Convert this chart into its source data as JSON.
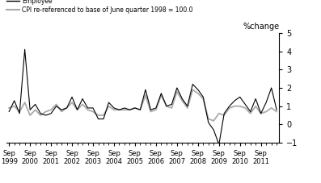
{
  "ylabel": "%change",
  "ylim": [
    -1,
    5
  ],
  "yticks": [
    -1,
    0,
    1,
    2,
    3,
    4,
    5
  ],
  "legend_employee": "Employee",
  "legend_cpi": "CPI re-referenced to base of June quarter 1998 = 100.0",
  "x_labels_top": [
    "Sep",
    "Sep",
    "Sep",
    "Sep",
    "Sep",
    "Sep",
    "Sep",
    "Sep",
    "Sep",
    "Sep",
    "Sep",
    "Sep",
    "Sep"
  ],
  "x_labels_bot": [
    "1999",
    "2000",
    "2001",
    "2002",
    "2003",
    "2004",
    "2005",
    "2006",
    "2007",
    "2008",
    "2009",
    "2010",
    "2011"
  ],
  "employee": [
    0.7,
    1.3,
    0.6,
    4.1,
    0.8,
    1.1,
    0.6,
    0.5,
    0.6,
    1.0,
    0.8,
    0.9,
    1.5,
    0.8,
    1.4,
    0.9,
    0.9,
    0.3,
    0.3,
    1.2,
    0.9,
    0.8,
    0.9,
    0.8,
    0.9,
    0.8,
    1.9,
    0.8,
    0.9,
    1.7,
    1.0,
    1.1,
    2.0,
    1.4,
    1.0,
    2.2,
    1.9,
    1.5,
    0.1,
    -0.3,
    -1.1,
    0.6,
    1.0,
    1.3,
    1.5,
    1.1,
    0.7,
    1.4,
    0.6,
    1.2,
    2.0,
    0.8
  ],
  "cpi": [
    0.9,
    1.0,
    0.7,
    1.2,
    0.5,
    0.8,
    0.5,
    0.7,
    0.8,
    1.1,
    0.7,
    0.9,
    1.2,
    0.8,
    1.1,
    0.8,
    0.7,
    0.5,
    0.5,
    1.0,
    0.8,
    0.8,
    0.8,
    0.8,
    0.9,
    0.8,
    1.6,
    0.7,
    0.8,
    1.6,
    1.0,
    0.9,
    1.8,
    1.3,
    0.9,
    1.9,
    1.7,
    1.4,
    0.3,
    0.2,
    0.6,
    0.5,
    0.9,
    1.0,
    1.0,
    0.9,
    0.6,
    1.0,
    0.6,
    0.7,
    0.9,
    0.7
  ],
  "employee_color": "#000000",
  "cpi_color": "#aaaaaa",
  "background_color": "#ffffff",
  "linewidth_employee": 0.8,
  "linewidth_cpi": 1.3
}
